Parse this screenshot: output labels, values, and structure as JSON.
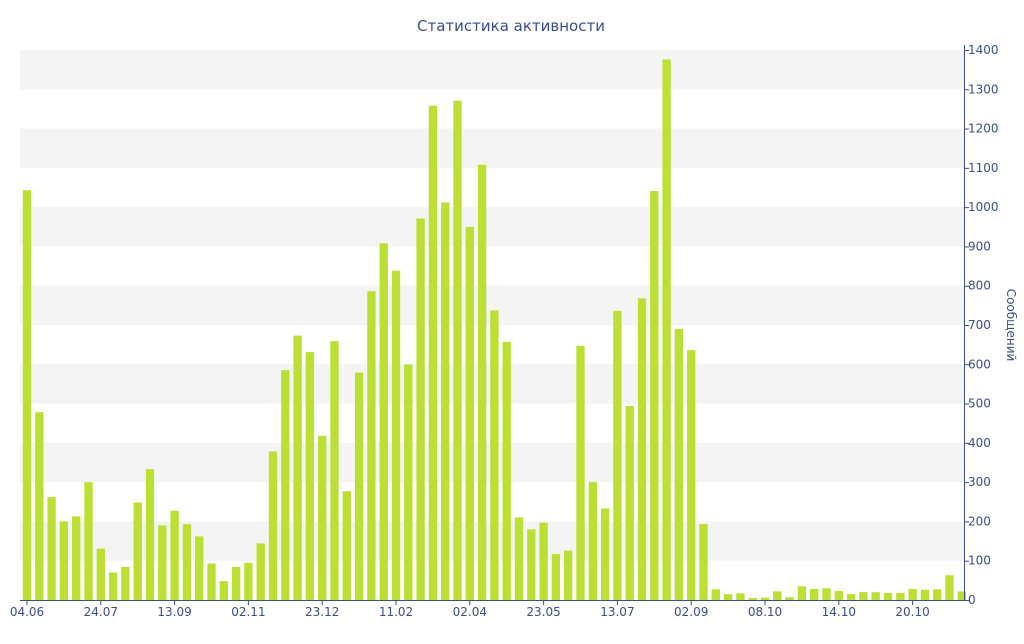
{
  "chart_data": {
    "type": "bar",
    "title": "Статистика активности",
    "xlabel": "",
    "ylabel": "Сообщений",
    "y_axis_side": "right",
    "ylim": [
      0,
      1400
    ],
    "y_ticks": [
      0,
      100,
      200,
      300,
      400,
      500,
      600,
      700,
      800,
      900,
      1000,
      1100,
      1200,
      1300,
      1400
    ],
    "x_tick_labels": [
      {
        "index": 0,
        "label": "04.06"
      },
      {
        "index": 6,
        "label": "24.07"
      },
      {
        "index": 12,
        "label": "13.09"
      },
      {
        "index": 18,
        "label": "02.11"
      },
      {
        "index": 24,
        "label": "23.12"
      },
      {
        "index": 30,
        "label": "11.02"
      },
      {
        "index": 36,
        "label": "02.04"
      },
      {
        "index": 42,
        "label": "23.05"
      },
      {
        "index": 48,
        "label": "13.07"
      },
      {
        "index": 54,
        "label": "02.09"
      },
      {
        "index": 60,
        "label": "08.10"
      },
      {
        "index": 66,
        "label": "14.10"
      },
      {
        "index": 72,
        "label": "20.10"
      }
    ],
    "grid": "horizontal-bands",
    "colors": {
      "bar": "#bbe033",
      "axis": "#3d4d8a",
      "band": "#f4f4f4",
      "text": "#3d4d8a"
    },
    "values": [
      1043,
      478,
      262,
      200,
      213,
      300,
      131,
      70,
      84,
      248,
      333,
      190,
      227,
      193,
      162,
      93,
      48,
      84,
      95,
      144,
      378,
      585,
      673,
      631,
      418,
      659,
      277,
      579,
      786,
      908,
      838,
      600,
      971,
      1258,
      1012,
      1271,
      950,
      1108,
      737,
      657,
      210,
      180,
      197,
      117,
      126,
      647,
      300,
      233,
      736,
      494,
      768,
      1041,
      1376,
      690,
      636,
      193,
      27,
      15,
      17,
      5,
      6,
      22,
      7,
      35,
      28,
      30,
      23,
      15,
      20,
      20,
      18,
      18,
      28,
      26,
      27,
      63,
      22
    ]
  }
}
